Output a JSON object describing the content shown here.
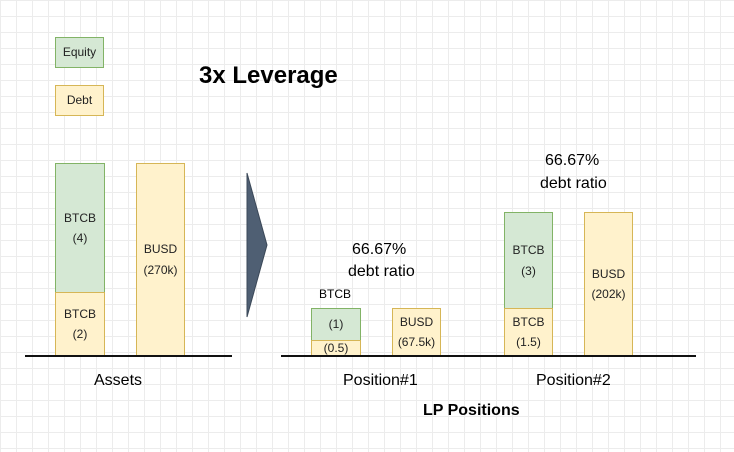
{
  "legend": {
    "equity": "Equity",
    "debt": "Debt"
  },
  "title": "3x Leverage",
  "assets": {
    "equity_asset": "BTCB",
    "equity_amount": "(4)",
    "debt_asset": "BTCB",
    "debt_amount": "(2)",
    "busd_asset": "BUSD",
    "busd_amount": "(270k)",
    "label": "Assets"
  },
  "position1": {
    "ratio_value": "66.67%",
    "ratio_label": "debt ratio",
    "btcb_label": "BTCB",
    "equity_amount": "(1)",
    "debt_amount": "(0.5)",
    "busd_asset": "BUSD",
    "busd_amount": "(67.5k)",
    "label": "Position#1"
  },
  "position2": {
    "ratio_value": "66.67%",
    "ratio_label": "debt ratio",
    "equity_asset": "BTCB",
    "equity_amount": "(3)",
    "debt_asset": "BTCB",
    "debt_amount": "(1.5)",
    "busd_asset": "BUSD",
    "busd_amount": "(202k)",
    "label": "Position#2"
  },
  "lp_title": "LP Positions",
  "colors": {
    "equity_fill": "#d5e8d4",
    "equity_border": "#82b366",
    "debt_fill": "#fff2cc",
    "debt_border": "#d6b656",
    "arrow": "#4f5f73"
  }
}
